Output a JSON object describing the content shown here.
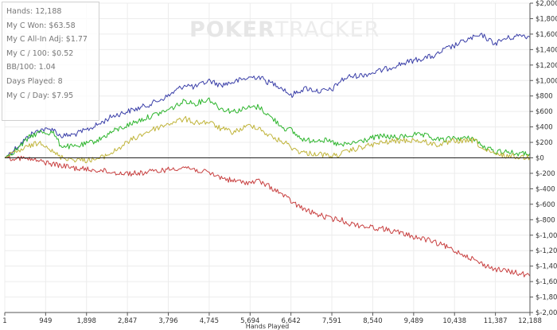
{
  "stats": [
    {
      "label": "Hands",
      "value": "12,188"
    },
    {
      "label": "My C Won",
      "value": "$63.58"
    },
    {
      "label": "My C All-In Adj",
      "value": "$1.77"
    },
    {
      "label": "My C / 100",
      "value": "$0.52"
    },
    {
      "label": "BB/100",
      "value": "1.04"
    },
    {
      "label": "Days Played",
      "value": "8"
    },
    {
      "label": "My C / Day",
      "value": "$7.95"
    }
  ],
  "watermark": {
    "part1": "POKER",
    "part2": "TRACKER"
  },
  "chart_data": {
    "type": "line",
    "xlabel": "Hands Played",
    "ylabel": "",
    "xlim": [
      1,
      12188
    ],
    "ylim": [
      -2000,
      2000
    ],
    "x_ticks": [
      "1",
      "949",
      "1,898",
      "2,847",
      "3,796",
      "4,745",
      "5,694",
      "6,642",
      "7,591",
      "8,540",
      "9,489",
      "10,438",
      "11,387",
      "12,188"
    ],
    "x_tick_values": [
      1,
      949,
      1898,
      2847,
      3796,
      4745,
      5694,
      6642,
      7591,
      8540,
      9489,
      10438,
      11387,
      12188
    ],
    "y_ticks": [
      "$2,000",
      "$1,800",
      "$1,600",
      "$1,400",
      "$1,200",
      "$1,000",
      "$800",
      "$600",
      "$400",
      "$200",
      "$0",
      "$-200",
      "$-400",
      "$-600",
      "$-800",
      "$-1,000",
      "$-1,200",
      "$-1,400",
      "$-1,600",
      "$-1,800",
      "$-2,000"
    ],
    "y_tick_values": [
      2000,
      1800,
      1600,
      1400,
      1200,
      1000,
      800,
      600,
      400,
      200,
      0,
      -200,
      -400,
      -600,
      -800,
      -1000,
      -1200,
      -1400,
      -1600,
      -1800,
      -2000
    ],
    "series": [
      {
        "color": "#3a3fa8",
        "x": [
          1,
          300,
          600,
          850,
          1000,
          1100,
          1300,
          1600,
          1898,
          2200,
          2500,
          2847,
          3100,
          3400,
          3796,
          4000,
          4200,
          4400,
          4745,
          5000,
          5300,
          5694,
          5900,
          6100,
          6300,
          6500,
          6642,
          6800,
          7000,
          7300,
          7591,
          7800,
          8000,
          8300,
          8540,
          8800,
          9100,
          9489,
          9800,
          10000,
          10200,
          10438,
          10700,
          10900,
          11100,
          11300,
          11387,
          11600,
          11800,
          12000,
          12188
        ],
        "y": [
          0,
          150,
          300,
          370,
          360,
          380,
          280,
          300,
          360,
          440,
          540,
          600,
          640,
          700,
          800,
          880,
          950,
          910,
          1000,
          940,
          980,
          1040,
          1050,
          980,
          950,
          880,
          800,
          860,
          900,
          860,
          880,
          1000,
          1050,
          1070,
          1100,
          1140,
          1200,
          1260,
          1300,
          1320,
          1400,
          1450,
          1520,
          1560,
          1580,
          1500,
          1480,
          1540,
          1560,
          1590,
          1560
        ]
      },
      {
        "color": "#2db52d",
        "x": [
          1,
          300,
          600,
          850,
          1000,
          1100,
          1300,
          1600,
          1898,
          2200,
          2500,
          2847,
          3100,
          3400,
          3796,
          4000,
          4200,
          4400,
          4745,
          5000,
          5300,
          5694,
          5900,
          6100,
          6300,
          6500,
          6642,
          6800,
          7000,
          7300,
          7591,
          7800,
          8000,
          8300,
          8540,
          8800,
          9100,
          9489,
          9800,
          10000,
          10200,
          10438,
          10700,
          10900,
          11100,
          11300,
          11387,
          11600,
          11800,
          12000,
          12188
        ],
        "y": [
          0,
          120,
          280,
          340,
          320,
          340,
          160,
          140,
          180,
          240,
          340,
          420,
          480,
          540,
          620,
          680,
          740,
          700,
          760,
          640,
          600,
          650,
          660,
          560,
          470,
          380,
          360,
          280,
          220,
          240,
          200,
          160,
          180,
          220,
          260,
          280,
          260,
          300,
          280,
          240,
          230,
          260,
          250,
          250,
          140,
          100,
          80,
          90,
          60,
          50,
          60
        ]
      },
      {
        "color": "#c0b43a",
        "x": [
          1,
          300,
          600,
          850,
          1000,
          1100,
          1300,
          1600,
          1898,
          2200,
          2500,
          2847,
          3100,
          3400,
          3796,
          4000,
          4200,
          4400,
          4745,
          5000,
          5300,
          5694,
          5900,
          6100,
          6300,
          6500,
          6642,
          6800,
          7000,
          7300,
          7591,
          7800,
          8000,
          8300,
          8540,
          8800,
          9100,
          9489,
          9800,
          10000,
          10200,
          10438,
          10700,
          10900,
          11100,
          11300,
          11387,
          11600,
          11800,
          12000,
          12188
        ],
        "y": [
          0,
          80,
          160,
          200,
          150,
          80,
          10,
          -20,
          -30,
          -10,
          70,
          200,
          280,
          360,
          440,
          480,
          500,
          460,
          460,
          380,
          330,
          420,
          390,
          300,
          240,
          200,
          140,
          90,
          60,
          50,
          20,
          50,
          90,
          140,
          170,
          200,
          220,
          230,
          200,
          170,
          180,
          220,
          210,
          230,
          110,
          60,
          40,
          30,
          20,
          10,
          10
        ]
      },
      {
        "color": "#c84040",
        "x": [
          1,
          300,
          600,
          950,
          1300,
          1600,
          1898,
          2200,
          2500,
          2847,
          3100,
          3400,
          3796,
          4000,
          4200,
          4400,
          4745,
          5000,
          5300,
          5694,
          5900,
          6100,
          6300,
          6500,
          6642,
          6800,
          7000,
          7300,
          7591,
          7800,
          8000,
          8300,
          8540,
          8800,
          9100,
          9489,
          9800,
          10000,
          10200,
          10438,
          10700,
          10900,
          11100,
          11300,
          11387,
          11600,
          11800,
          12000,
          12188
        ],
        "y": [
          0,
          0,
          -20,
          -60,
          -100,
          -130,
          -150,
          -160,
          -190,
          -200,
          -200,
          -180,
          -150,
          -130,
          -120,
          -150,
          -200,
          -250,
          -300,
          -320,
          -300,
          -360,
          -420,
          -500,
          -560,
          -620,
          -680,
          -740,
          -790,
          -800,
          -850,
          -880,
          -900,
          -920,
          -960,
          -1020,
          -1060,
          -1100,
          -1140,
          -1200,
          -1260,
          -1320,
          -1380,
          -1420,
          -1440,
          -1460,
          -1480,
          -1500,
          -1530
        ]
      }
    ]
  }
}
